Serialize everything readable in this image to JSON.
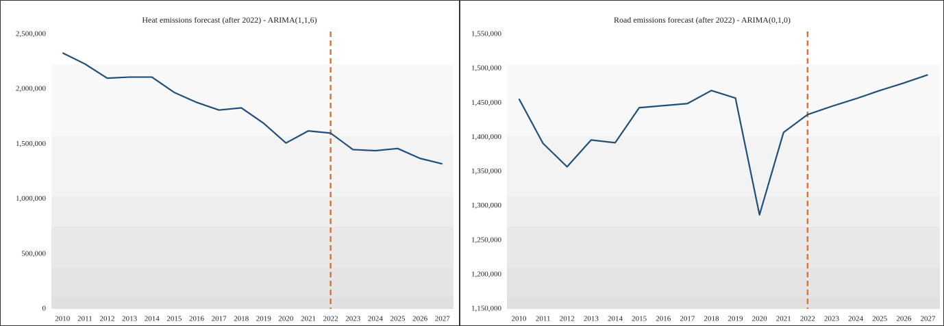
{
  "chart_data": [
    {
      "type": "line",
      "title": "Heat emissions forecast (after 2022) - ARIMA(1,1,6)",
      "categories": [
        "2010",
        "2011",
        "2012",
        "2013",
        "2014",
        "2015",
        "2016",
        "2017",
        "2018",
        "2019",
        "2020",
        "2021",
        "2022",
        "2023",
        "2024",
        "2025",
        "2026",
        "2027"
      ],
      "series": [
        {
          "color": "#1f4e79",
          "values": [
            2330000,
            2230000,
            2100000,
            2110000,
            2110000,
            1970000,
            1880000,
            1810000,
            1830000,
            1690000,
            1510000,
            1620000,
            1600000,
            1450000,
            1440000,
            1460000,
            1370000,
            1320000
          ]
        }
      ],
      "ylim": [
        0,
        2500000
      ],
      "yticks": [
        0,
        {
          "value": 500000,
          "label": "500,000"
        },
        {
          "value": 1000000,
          "label": "1,000,000"
        },
        {
          "value": 1500000,
          "label": "1,500,000"
        },
        {
          "value": 2000000,
          "label": "2,000,000"
        },
        {
          "value": 2500000,
          "label": "2,500,000"
        }
      ],
      "forecast_start": "2022",
      "forecast_line_color": "#e8702a"
    },
    {
      "type": "line",
      "title": "Road emissions forecast (after 2022) - ARIMA(0,1,0)",
      "categories": [
        "2010",
        "2011",
        "2012",
        "2013",
        "2014",
        "2015",
        "2016",
        "2017",
        "2018",
        "2019",
        "2020",
        "2021",
        "2022",
        "2023",
        "2024",
        "2025",
        "2026",
        "2027"
      ],
      "series": [
        {
          "color": "#1f4e79",
          "values": [
            1456000,
            1391000,
            1357000,
            1396000,
            1392000,
            1443000,
            1446000,
            1449000,
            1468000,
            1457000,
            1287000,
            1407000,
            1433000,
            1445000,
            1456000,
            1468000,
            1479000,
            1491000
          ]
        }
      ],
      "ylim": [
        1150000,
        1550000
      ],
      "yticks": [
        {
          "value": 1150000,
          "label": "1,150,000"
        },
        {
          "value": 1200000,
          "label": "1,200,000"
        },
        {
          "value": 1250000,
          "label": "1,250,000"
        },
        {
          "value": 1300000,
          "label": "1,300,000"
        },
        {
          "value": 1350000,
          "label": "1,350,000"
        },
        {
          "value": 1400000,
          "label": "1,400,000"
        },
        {
          "value": 1450000,
          "label": "1,450,000"
        },
        {
          "value": 1500000,
          "label": "1,500,000"
        },
        {
          "value": 1550000,
          "label": "1,550,000"
        }
      ],
      "forecast_start": "2022",
      "forecast_line_color": "#e8702a"
    }
  ]
}
